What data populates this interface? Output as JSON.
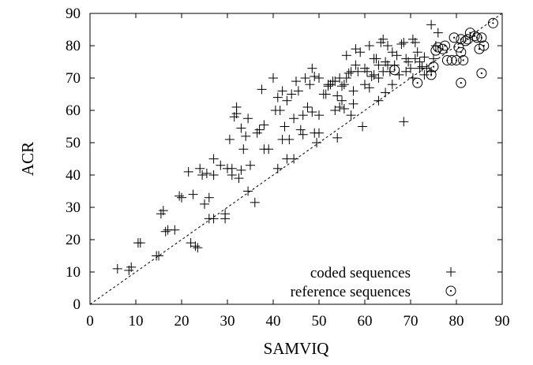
{
  "chart_data": {
    "type": "scatter",
    "xlabel": "SAMVIQ",
    "ylabel": "ACR",
    "xlim": [
      0,
      90
    ],
    "ylim": [
      0,
      90
    ],
    "xticks": [
      0,
      10,
      20,
      30,
      40,
      50,
      60,
      70,
      80,
      90
    ],
    "yticks": [
      0,
      10,
      20,
      30,
      40,
      50,
      60,
      70,
      80,
      90
    ],
    "grid": false,
    "legend_position": "bottom-right",
    "reference_line": {
      "style": "dashed",
      "from": [
        0,
        0
      ],
      "to": [
        90,
        90
      ]
    },
    "series": [
      {
        "name": "coded sequences",
        "marker": "plus",
        "points": [
          [
            6,
            11
          ],
          [
            8.5,
            10.5
          ],
          [
            9,
            11.5
          ],
          [
            10.5,
            19
          ],
          [
            11,
            19
          ],
          [
            14.5,
            15
          ],
          [
            15,
            15
          ],
          [
            15.5,
            28
          ],
          [
            16,
            29
          ],
          [
            16.5,
            22.5
          ],
          [
            17,
            23
          ],
          [
            18.5,
            23
          ],
          [
            19.5,
            33.5
          ],
          [
            20,
            33
          ],
          [
            21.5,
            41
          ],
          [
            22,
            19
          ],
          [
            22.5,
            34
          ],
          [
            23,
            18
          ],
          [
            23.5,
            17.5
          ],
          [
            24,
            42
          ],
          [
            24.5,
            40
          ],
          [
            25,
            31
          ],
          [
            25.5,
            40.5
          ],
          [
            26,
            26.5
          ],
          [
            26,
            33
          ],
          [
            27,
            26.5
          ],
          [
            27,
            45
          ],
          [
            27,
            40
          ],
          [
            28.5,
            43
          ],
          [
            29.5,
            28
          ],
          [
            29.5,
            26.5
          ],
          [
            30,
            42
          ],
          [
            30.5,
            51
          ],
          [
            31,
            42
          ],
          [
            31,
            40
          ],
          [
            31.5,
            58
          ],
          [
            32,
            61
          ],
          [
            32,
            59
          ],
          [
            32.5,
            39
          ],
          [
            33,
            41.5
          ],
          [
            33,
            54.5
          ],
          [
            33.5,
            48
          ],
          [
            34,
            52
          ],
          [
            34.5,
            57.5
          ],
          [
            34.5,
            35
          ],
          [
            35,
            43
          ],
          [
            36,
            31.5
          ],
          [
            36.5,
            53
          ],
          [
            37,
            54
          ],
          [
            37.5,
            66.5
          ],
          [
            38,
            48
          ],
          [
            38,
            55.5
          ],
          [
            39,
            48
          ],
          [
            40,
            70
          ],
          [
            40.5,
            60
          ],
          [
            41,
            64
          ],
          [
            41,
            42
          ],
          [
            41.5,
            60
          ],
          [
            42,
            66
          ],
          [
            42,
            51
          ],
          [
            42.5,
            55
          ],
          [
            43,
            45
          ],
          [
            43,
            63
          ],
          [
            43.5,
            51
          ],
          [
            44,
            65
          ],
          [
            44.5,
            45
          ],
          [
            44.5,
            57.5
          ],
          [
            45,
            69
          ],
          [
            45.5,
            66
          ],
          [
            46,
            54
          ],
          [
            46.5,
            58.5
          ],
          [
            46.5,
            52.5
          ],
          [
            47,
            70
          ],
          [
            47.5,
            61
          ],
          [
            48,
            68
          ],
          [
            48.5,
            59.5
          ],
          [
            48.5,
            73
          ],
          [
            49,
            70.5
          ],
          [
            49,
            53
          ],
          [
            49.5,
            50
          ],
          [
            50,
            70
          ],
          [
            50,
            58.5
          ],
          [
            50,
            53
          ],
          [
            51,
            65
          ],
          [
            51.5,
            65
          ],
          [
            52,
            67.5
          ],
          [
            52,
            68
          ],
          [
            52.5,
            68
          ],
          [
            53,
            69
          ],
          [
            53.5,
            69
          ],
          [
            53.5,
            60
          ],
          [
            54,
            64.5
          ],
          [
            54,
            51.5
          ],
          [
            54.5,
            70
          ],
          [
            54.5,
            61
          ],
          [
            55,
            67.5
          ],
          [
            55,
            63
          ],
          [
            55.5,
            60.5
          ],
          [
            55.5,
            68
          ],
          [
            56,
            77
          ],
          [
            56,
            70
          ],
          [
            56.5,
            71.5
          ],
          [
            57,
            58.5
          ],
          [
            57,
            72
          ],
          [
            57.5,
            62
          ],
          [
            57.5,
            66
          ],
          [
            58,
            74
          ],
          [
            58,
            79
          ],
          [
            58.5,
            72
          ],
          [
            59,
            78
          ],
          [
            59.5,
            55
          ],
          [
            60,
            73
          ],
          [
            60,
            68
          ],
          [
            60.5,
            72
          ],
          [
            61,
            80
          ],
          [
            61,
            67
          ],
          [
            61.5,
            70.5
          ],
          [
            62,
            71
          ],
          [
            62,
            76
          ],
          [
            62.5,
            76
          ],
          [
            63,
            74
          ],
          [
            63,
            70
          ],
          [
            63,
            63
          ],
          [
            63.5,
            81
          ],
          [
            64,
            72
          ],
          [
            64,
            82
          ],
          [
            64.5,
            75
          ],
          [
            64.5,
            65.5
          ],
          [
            65,
            80
          ],
          [
            65,
            74
          ],
          [
            65.5,
            72
          ],
          [
            66,
            68
          ],
          [
            66,
            78
          ],
          [
            66.5,
            74
          ],
          [
            67,
            77
          ],
          [
            67.5,
            71
          ],
          [
            68,
            80.5
          ],
          [
            68.5,
            56.5
          ],
          [
            68.5,
            81
          ],
          [
            69,
            76
          ],
          [
            69,
            72
          ],
          [
            69.5,
            75
          ],
          [
            70,
            73
          ],
          [
            70.5,
            82
          ],
          [
            70.5,
            70
          ],
          [
            71,
            81
          ],
          [
            71,
            76
          ],
          [
            71.5,
            78
          ],
          [
            72,
            75
          ],
          [
            72,
            73
          ],
          [
            72.5,
            73.5
          ],
          [
            73,
            71
          ],
          [
            73,
            76.5
          ],
          [
            73.5,
            73
          ],
          [
            74.5,
            86.5
          ],
          [
            74.5,
            72
          ],
          [
            75,
            76
          ],
          [
            75.5,
            80
          ],
          [
            76,
            84
          ]
        ]
      },
      {
        "name": "reference sequences",
        "marker": "circle-dot",
        "points": [
          [
            66.5,
            72.5
          ],
          [
            71.5,
            68.5
          ],
          [
            74.5,
            71
          ],
          [
            75,
            73.5
          ],
          [
            75.5,
            78.5
          ],
          [
            76,
            79.5
          ],
          [
            77,
            79
          ],
          [
            77.5,
            80
          ],
          [
            78,
            75.5
          ],
          [
            79,
            75.5
          ],
          [
            79.5,
            82.5
          ],
          [
            80,
            75.5
          ],
          [
            80.5,
            79.5
          ],
          [
            81,
            78
          ],
          [
            81,
            82
          ],
          [
            81,
            68.5
          ],
          [
            81.5,
            75.5
          ],
          [
            82,
            81.5
          ],
          [
            82.5,
            82
          ],
          [
            83,
            84
          ],
          [
            84,
            83
          ],
          [
            84.5,
            82.5
          ],
          [
            85,
            79
          ],
          [
            85.5,
            82.5
          ],
          [
            85.5,
            71.5
          ],
          [
            86,
            80
          ],
          [
            88,
            87
          ]
        ]
      }
    ]
  }
}
